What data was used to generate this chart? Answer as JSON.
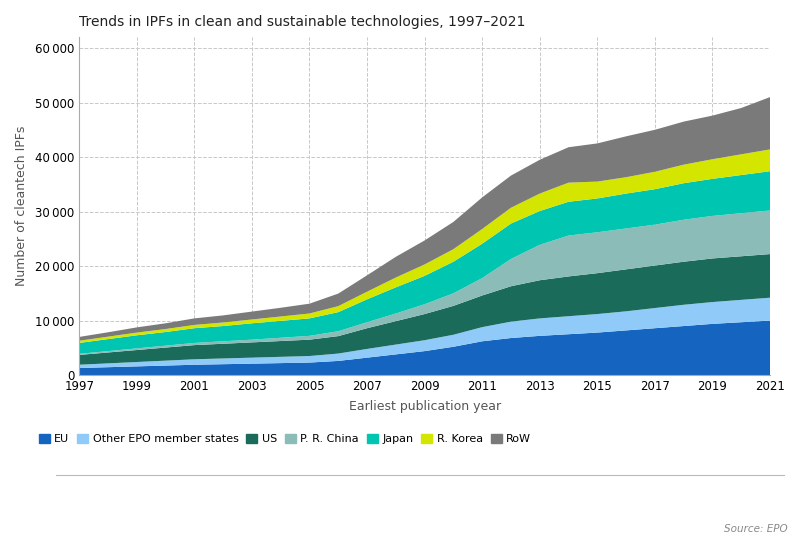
{
  "title": "Trends in IPFs in clean and sustainable technologies, 1997–2021",
  "xlabel": "Earliest publication year",
  "ylabel": "Number of cleantech IPFs",
  "source": "Source: EPO",
  "years": [
    1997,
    1998,
    1999,
    2000,
    2001,
    2002,
    2003,
    2004,
    2005,
    2006,
    2007,
    2008,
    2009,
    2010,
    2011,
    2012,
    2013,
    2014,
    2015,
    2016,
    2017,
    2018,
    2019,
    2020,
    2021
  ],
  "series": {
    "EU": [
      1300,
      1450,
      1600,
      1750,
      1900,
      2000,
      2100,
      2200,
      2300,
      2600,
      3200,
      3800,
      4400,
      5200,
      6200,
      6800,
      7200,
      7500,
      7800,
      8200,
      8600,
      9000,
      9400,
      9700,
      10000
    ],
    "Other EPO member states": [
      600,
      700,
      800,
      900,
      1000,
      1050,
      1100,
      1150,
      1200,
      1350,
      1600,
      1800,
      2000,
      2200,
      2600,
      3000,
      3200,
      3300,
      3400,
      3500,
      3700,
      3900,
      4000,
      4100,
      4200
    ],
    "US": [
      1800,
      2000,
      2200,
      2400,
      2600,
      2700,
      2800,
      2900,
      3000,
      3200,
      3800,
      4300,
      4800,
      5300,
      5800,
      6500,
      7000,
      7300,
      7500,
      7700,
      7800,
      7900,
      8000,
      8000,
      8000
    ],
    "P. R. China": [
      200,
      250,
      300,
      350,
      400,
      450,
      500,
      600,
      700,
      900,
      1100,
      1400,
      1800,
      2300,
      3200,
      5000,
      6500,
      7500,
      7500,
      7500,
      7500,
      7700,
      7800,
      7900,
      8000
    ],
    "Japan": [
      2000,
      2200,
      2400,
      2500,
      2700,
      2800,
      3000,
      3100,
      3200,
      3500,
      4200,
      4800,
      5200,
      5800,
      6300,
      6500,
      6200,
      6200,
      6200,
      6400,
      6500,
      6700,
      6800,
      7000,
      7200
    ],
    "R. Korea": [
      400,
      450,
      500,
      550,
      600,
      650,
      700,
      800,
      900,
      1100,
      1400,
      1800,
      2100,
      2300,
      2700,
      2900,
      3200,
      3500,
      3100,
      3000,
      3200,
      3400,
      3600,
      3800,
      4000
    ],
    "RoW": [
      700,
      800,
      950,
      1050,
      1200,
      1300,
      1450,
      1600,
      1800,
      2300,
      3000,
      3800,
      4400,
      5000,
      5800,
      5900,
      6200,
      6500,
      7000,
      7500,
      7700,
      7900,
      8000,
      8500,
      9600
    ]
  },
  "colors": {
    "EU": "#1565C0",
    "Other EPO member states": "#90CAF9",
    "US": "#1B6B5A",
    "P. R. China": "#8BBCB8",
    "Japan": "#00C5B0",
    "R. Korea": "#D4E600",
    "RoW": "#7A7A7A"
  },
  "ylim": [
    0,
    62000
  ],
  "yticks": [
    0,
    10000,
    20000,
    30000,
    40000,
    50000,
    60000
  ],
  "background_color": "#ffffff",
  "grid_color": "#c8c8c8"
}
